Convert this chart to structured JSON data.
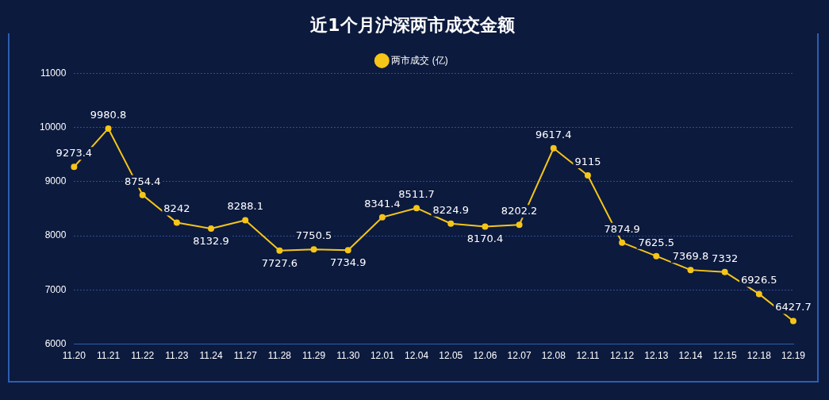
{
  "chart_data": {
    "type": "line",
    "title": "近1个月沪深两市成交金额",
    "categories": [
      "11.20",
      "11.21",
      "11.22",
      "11.23",
      "11.24",
      "11.27",
      "11.28",
      "11.29",
      "11.30",
      "12.01",
      "12.04",
      "12.05",
      "12.06",
      "12.07",
      "12.08",
      "12.11",
      "12.12",
      "12.13",
      "12.14",
      "12.15",
      "12.18",
      "12.19"
    ],
    "series": [
      {
        "name": "两市成交 (亿)",
        "color": "#f5c518",
        "values": [
          9273.4,
          9980.8,
          8754.4,
          8242,
          8132.9,
          8288.1,
          7727.6,
          7750.5,
          7734.9,
          8341.4,
          8511.7,
          8224.9,
          8170.4,
          8202.2,
          9617.4,
          9115,
          7874.9,
          7625.5,
          7369.8,
          7332,
          6926.5,
          6427.7
        ]
      }
    ],
    "ylim": [
      6000,
      11000
    ],
    "yticks": [
      6000,
      7000,
      8000,
      9000,
      10000,
      11000
    ],
    "grid": "y",
    "legend": "top",
    "marker": "circle",
    "line_style": "solid",
    "data_labels": true
  }
}
